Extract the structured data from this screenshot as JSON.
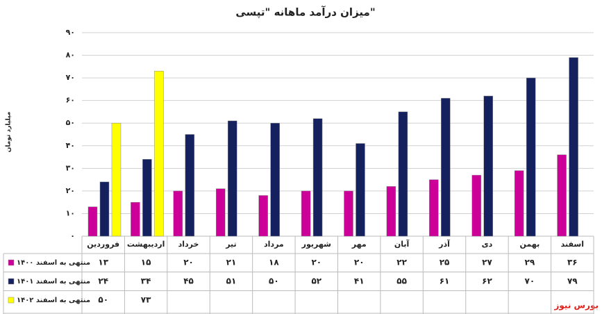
{
  "chart_data": {
    "type": "bar",
    "title": "میزان درآمد ماهانه \"تپسی\"",
    "y_label": "میلیارد تومان",
    "source": "بورس نیوز",
    "categories": [
      "فروردین",
      "اردیبهشت",
      "خرداد",
      "تیر",
      "مرداد",
      "شهریور",
      "مهر",
      "آبان",
      "آذر",
      "دی",
      "بهمن",
      "اسفند"
    ],
    "series": [
      {
        "name": "منتهی به اسفند ۱۴۰۰",
        "color": "#cc0099",
        "values": [
          13,
          15,
          20,
          21,
          18,
          20,
          20,
          22,
          25,
          27,
          29,
          36
        ],
        "value_labels": [
          "۱۳",
          "۱۵",
          "۲۰",
          "۲۱",
          "۱۸",
          "۲۰",
          "۲۰",
          "۲۲",
          "۲۵",
          "۲۷",
          "۲۹",
          "۳۶"
        ]
      },
      {
        "name": "منتهی به اسفند ۱۴۰۱",
        "color": "#14215e",
        "values": [
          24,
          34,
          45,
          51,
          50,
          52,
          41,
          55,
          61,
          62,
          70,
          79
        ],
        "value_labels": [
          "۲۴",
          "۳۴",
          "۴۵",
          "۵۱",
          "۵۰",
          "۵۲",
          "۴۱",
          "۵۵",
          "۶۱",
          "۶۲",
          "۷۰",
          "۷۹"
        ]
      },
      {
        "name": "منتهی به اسفند ۱۴۰۲",
        "color": "#ffff00",
        "values": [
          50,
          73,
          null,
          null,
          null,
          null,
          null,
          null,
          null,
          null,
          null,
          null
        ],
        "value_labels": [
          "۵۰",
          "۷۳",
          null,
          null,
          null,
          null,
          null,
          null,
          null,
          null,
          null,
          null
        ]
      }
    ],
    "ylim": [
      0,
      90
    ],
    "yticks": [
      {
        "value": 0,
        "label": "۰"
      },
      {
        "value": 10,
        "label": "۱۰"
      },
      {
        "value": 20,
        "label": "۲۰"
      },
      {
        "value": 30,
        "label": "۳۰"
      },
      {
        "value": 40,
        "label": "۴۰"
      },
      {
        "value": 50,
        "label": "۵۰"
      },
      {
        "value": 60,
        "label": "۶۰"
      },
      {
        "value": 70,
        "label": "۷۰"
      },
      {
        "value": 80,
        "label": "۸۰"
      },
      {
        "value": 90,
        "label": "۹۰"
      }
    ],
    "grid": true
  }
}
